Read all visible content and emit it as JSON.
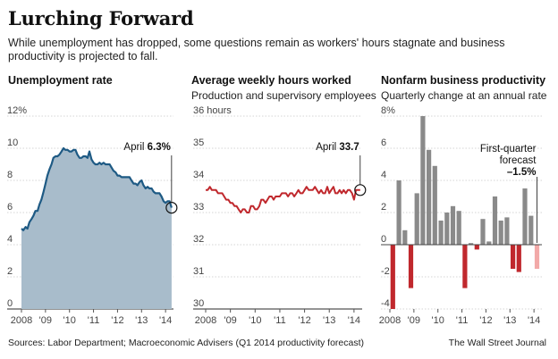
{
  "headline": "Lurching Forward",
  "dek": "While unemployment has dropped, some questions remain as workers' hours stagnate and business productivity is projected to fall.",
  "source": "Sources: Labor Department; Macroeconomic Advisers (Q1 2014 productivity forecast)",
  "credit": "The Wall Street Journal",
  "chart_data": [
    {
      "type": "area",
      "title": "Unemployment rate",
      "subtitle": "",
      "color": "#a8bccb",
      "line_color": "#1e5a84",
      "ylim": [
        0,
        12
      ],
      "yticks": [
        0,
        2,
        4,
        6,
        8,
        10,
        12
      ],
      "ytick_labels": [
        "0",
        "2",
        "4",
        "6",
        "8",
        "10",
        "12%"
      ],
      "xlim": [
        2008,
        2014.33
      ],
      "xticks": [
        2008,
        2009,
        2010,
        2011,
        2012,
        2013,
        2014
      ],
      "xtick_labels": [
        "2008",
        "'09",
        "'10",
        "'11",
        "'12",
        "'13",
        "'14"
      ],
      "x": [
        2008.0,
        2008.08,
        2008.17,
        2008.25,
        2008.33,
        2008.42,
        2008.5,
        2008.58,
        2008.67,
        2008.75,
        2008.83,
        2008.92,
        2009.0,
        2009.08,
        2009.17,
        2009.25,
        2009.33,
        2009.42,
        2009.5,
        2009.58,
        2009.67,
        2009.75,
        2009.83,
        2009.92,
        2010.0,
        2010.08,
        2010.17,
        2010.25,
        2010.33,
        2010.42,
        2010.5,
        2010.58,
        2010.67,
        2010.75,
        2010.83,
        2010.92,
        2011.0,
        2011.08,
        2011.17,
        2011.25,
        2011.33,
        2011.42,
        2011.5,
        2011.58,
        2011.67,
        2011.75,
        2011.83,
        2011.92,
        2012.0,
        2012.08,
        2012.17,
        2012.25,
        2012.33,
        2012.42,
        2012.5,
        2012.58,
        2012.67,
        2012.75,
        2012.83,
        2012.92,
        2013.0,
        2013.08,
        2013.17,
        2013.25,
        2013.33,
        2013.42,
        2013.5,
        2013.58,
        2013.67,
        2013.75,
        2013.83,
        2013.92,
        2014.0,
        2014.08,
        2014.17,
        2014.25
      ],
      "y": [
        5.0,
        4.9,
        5.1,
        5.0,
        5.4,
        5.6,
        5.8,
        6.1,
        6.1,
        6.5,
        6.8,
        7.3,
        7.8,
        8.3,
        8.7,
        9.0,
        9.4,
        9.5,
        9.5,
        9.6,
        9.8,
        10.0,
        9.9,
        9.9,
        9.8,
        9.8,
        9.9,
        9.9,
        9.6,
        9.4,
        9.4,
        9.5,
        9.5,
        9.4,
        9.8,
        9.3,
        9.1,
        9.0,
        9.0,
        9.1,
        9.0,
        9.1,
        9.0,
        9.0,
        9.0,
        8.8,
        8.6,
        8.5,
        8.3,
        8.3,
        8.2,
        8.2,
        8.2,
        8.2,
        8.2,
        8.0,
        7.8,
        7.8,
        7.7,
        7.9,
        8.0,
        7.7,
        7.5,
        7.6,
        7.5,
        7.5,
        7.3,
        7.2,
        7.2,
        7.2,
        7.0,
        6.7,
        6.6,
        6.7,
        6.7,
        6.3
      ],
      "annotation": {
        "label": "April",
        "value": "6.3%"
      }
    },
    {
      "type": "line",
      "title": "Average weekly hours worked",
      "subtitle": "Production and supervisory employees",
      "color": "#c0282d",
      "ylim": [
        30,
        36
      ],
      "yticks": [
        30,
        31,
        32,
        33,
        34,
        35,
        36
      ],
      "ytick_labels": [
        "30",
        "31",
        "32",
        "33",
        "34",
        "35",
        "36 hours"
      ],
      "xlim": [
        2008,
        2014.33
      ],
      "xticks": [
        2008,
        2009,
        2010,
        2011,
        2012,
        2013,
        2014
      ],
      "xtick_labels": [
        "2008",
        "'09",
        "'10",
        "'11",
        "'12",
        "'13",
        "'14"
      ],
      "x": [
        2008.0,
        2008.08,
        2008.17,
        2008.25,
        2008.33,
        2008.42,
        2008.5,
        2008.58,
        2008.67,
        2008.75,
        2008.83,
        2008.92,
        2009.0,
        2009.08,
        2009.17,
        2009.25,
        2009.33,
        2009.42,
        2009.5,
        2009.58,
        2009.67,
        2009.75,
        2009.83,
        2009.92,
        2010.0,
        2010.08,
        2010.17,
        2010.25,
        2010.33,
        2010.42,
        2010.5,
        2010.58,
        2010.67,
        2010.75,
        2010.83,
        2010.92,
        2011.0,
        2011.08,
        2011.17,
        2011.25,
        2011.33,
        2011.42,
        2011.5,
        2011.58,
        2011.67,
        2011.75,
        2011.83,
        2011.92,
        2012.0,
        2012.08,
        2012.17,
        2012.25,
        2012.33,
        2012.42,
        2012.5,
        2012.58,
        2012.67,
        2012.75,
        2012.83,
        2012.92,
        2013.0,
        2013.08,
        2013.17,
        2013.25,
        2013.33,
        2013.42,
        2013.5,
        2013.58,
        2013.67,
        2013.75,
        2013.83,
        2013.92,
        2014.0,
        2014.08,
        2014.17,
        2014.25
      ],
      "y": [
        33.7,
        33.7,
        33.8,
        33.7,
        33.7,
        33.7,
        33.6,
        33.6,
        33.6,
        33.5,
        33.4,
        33.4,
        33.3,
        33.3,
        33.2,
        33.2,
        33.1,
        33.0,
        33.1,
        33.1,
        33.0,
        33.0,
        33.2,
        33.2,
        33.1,
        33.1,
        33.2,
        33.4,
        33.4,
        33.3,
        33.4,
        33.5,
        33.5,
        33.4,
        33.5,
        33.5,
        33.5,
        33.6,
        33.6,
        33.6,
        33.5,
        33.6,
        33.6,
        33.5,
        33.6,
        33.7,
        33.6,
        33.6,
        33.7,
        33.8,
        33.7,
        33.7,
        33.7,
        33.8,
        33.7,
        33.6,
        33.7,
        33.6,
        33.6,
        33.8,
        33.6,
        33.7,
        33.8,
        33.6,
        33.6,
        33.7,
        33.6,
        33.7,
        33.6,
        33.7,
        33.7,
        33.6,
        33.4,
        33.7,
        33.7,
        33.7
      ],
      "annotation": {
        "label": "April",
        "value": "33.7"
      }
    },
    {
      "type": "bar",
      "title": "Nonfarm business productivity",
      "subtitle": "Quarterly change at an annual rate",
      "color": "#8a8a8a",
      "negative_color": "#c0282d",
      "forecast_color": "#f2a9a8",
      "ylim": [
        -4,
        8
      ],
      "yticks": [
        -4,
        -2,
        0,
        2,
        4,
        6,
        8
      ],
      "ytick_labels": [
        "-4",
        "-2",
        "0",
        "2",
        "4",
        "6",
        "8%"
      ],
      "xlim": [
        2008,
        2014.33
      ],
      "xticks": [
        2008,
        2009,
        2010,
        2011,
        2012,
        2013,
        2014
      ],
      "xtick_labels": [
        "2008",
        "'09",
        "'10",
        "'11",
        "'12",
        "'13",
        "'14"
      ],
      "quarters": [
        "2008 Q1",
        "2008 Q2",
        "2008 Q3",
        "2008 Q4",
        "2009 Q1",
        "2009 Q2",
        "2009 Q3",
        "2009 Q4",
        "2010 Q1",
        "2010 Q2",
        "2010 Q3",
        "2010 Q4",
        "2011 Q1",
        "2011 Q2",
        "2011 Q3",
        "2011 Q4",
        "2012 Q1",
        "2012 Q2",
        "2012 Q3",
        "2012 Q4",
        "2013 Q1",
        "2013 Q2",
        "2013 Q3",
        "2013 Q4",
        "2014 Q1"
      ],
      "values": [
        -4.0,
        4.0,
        0.9,
        -2.7,
        3.2,
        8.0,
        5.9,
        4.9,
        1.5,
        2.0,
        2.4,
        2.1,
        -2.7,
        0.1,
        -0.3,
        1.6,
        0.2,
        3.0,
        1.5,
        1.7,
        -1.5,
        -1.7,
        3.5,
        1.8,
        -1.5
      ],
      "forecast_index": 24,
      "annotation": {
        "label": "First-quarter forecast",
        "label_line1": "First-quarter",
        "label_line2": "forecast",
        "value": "–1.5%"
      }
    }
  ]
}
